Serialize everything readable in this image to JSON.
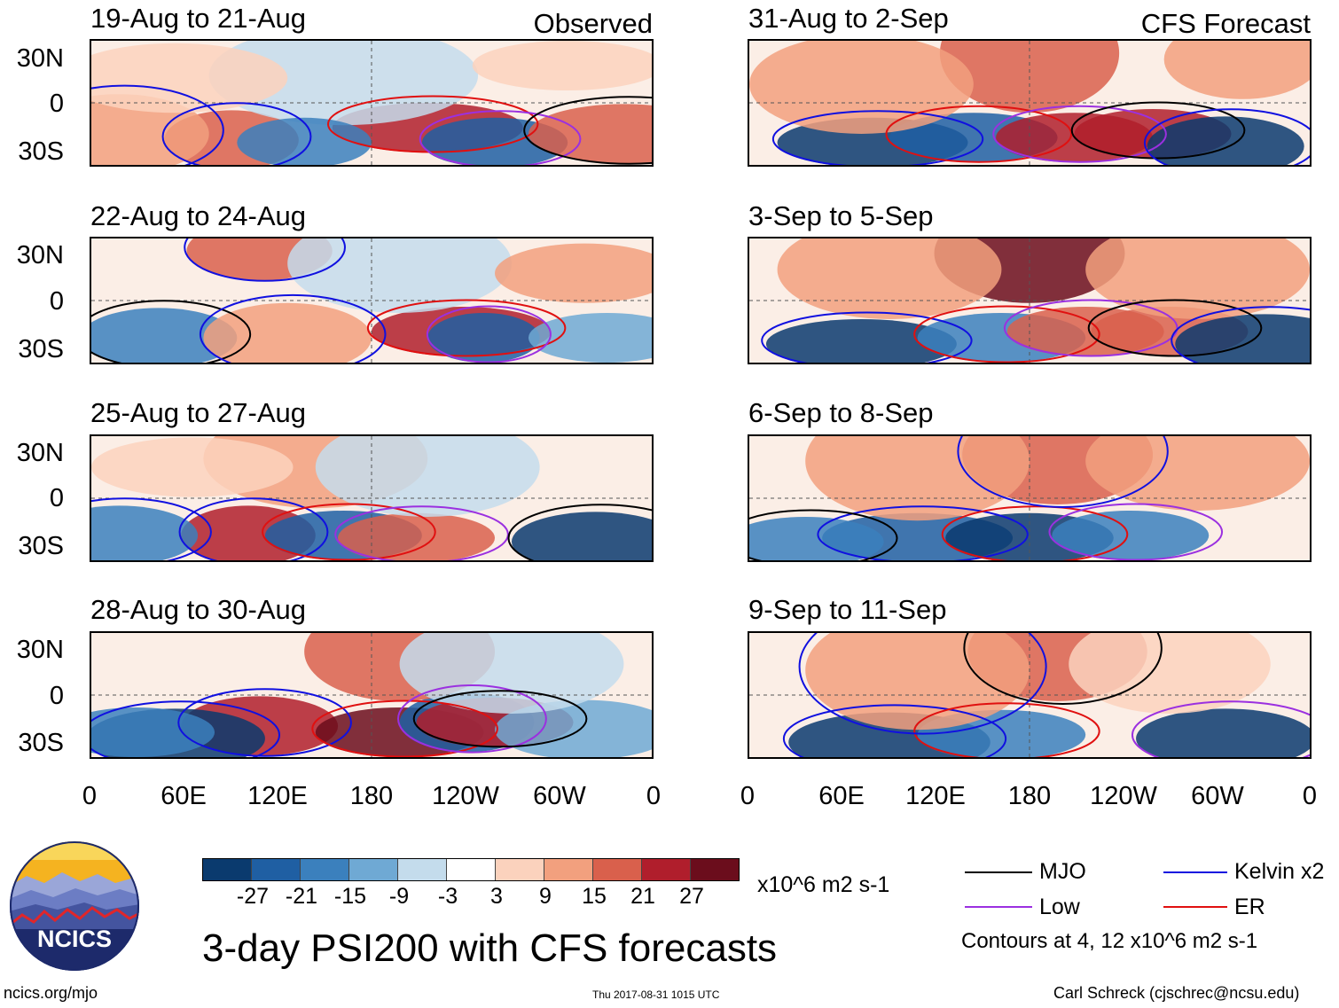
{
  "panels": {
    "observed": [
      {
        "title": "19-Aug to 21-Aug",
        "corner": "Observed"
      },
      {
        "title": "22-Aug to 24-Aug"
      },
      {
        "title": "25-Aug to 27-Aug"
      },
      {
        "title": "28-Aug to 30-Aug"
      }
    ],
    "forecast": [
      {
        "title": "31-Aug to 2-Sep",
        "corner": "CFS Forecast"
      },
      {
        "title": "3-Sep to 5-Sep"
      },
      {
        "title": "6-Sep to 8-Sep"
      },
      {
        "title": "9-Sep to 11-Sep"
      }
    ]
  },
  "axes": {
    "lat_labels": [
      "30N",
      "0",
      "30S"
    ],
    "lon_labels": [
      "0",
      "60E",
      "120E",
      "180",
      "120W",
      "60W",
      "0"
    ]
  },
  "colorbar": {
    "ticks": [
      "-27",
      "-21",
      "-15",
      "-9",
      "-3",
      "3",
      "9",
      "15",
      "21",
      "27"
    ],
    "units": "x10^6 m2 s-1",
    "colors": [
      "#0a3a6e",
      "#1f5fa3",
      "#3b80bd",
      "#6fa9d4",
      "#c4dcec",
      "#ffffff",
      "#fbd2bd",
      "#f2a07e",
      "#d9604c",
      "#b01e2c",
      "#6b0d1c"
    ]
  },
  "legend": {
    "mjo": {
      "label": "MJO",
      "color": "#000000"
    },
    "kelvin": {
      "label": "Kelvin x2",
      "color": "#1010e0"
    },
    "low": {
      "label": "Low",
      "color": "#9b30e0"
    },
    "er": {
      "label": "ER",
      "color": "#e01010"
    },
    "contours_note": "Contours at 4, 12 x10^6 m2 s-1"
  },
  "logo": {
    "text": "NCICS"
  },
  "main_title": "3-day PSI200 with CFS forecasts",
  "footer": {
    "url": "ncics.org/mjo",
    "timestamp": "Thu 2017-08-31 1015 UTC",
    "credit": "Carl Schreck (cjschrec@ncsu.edu)"
  }
}
